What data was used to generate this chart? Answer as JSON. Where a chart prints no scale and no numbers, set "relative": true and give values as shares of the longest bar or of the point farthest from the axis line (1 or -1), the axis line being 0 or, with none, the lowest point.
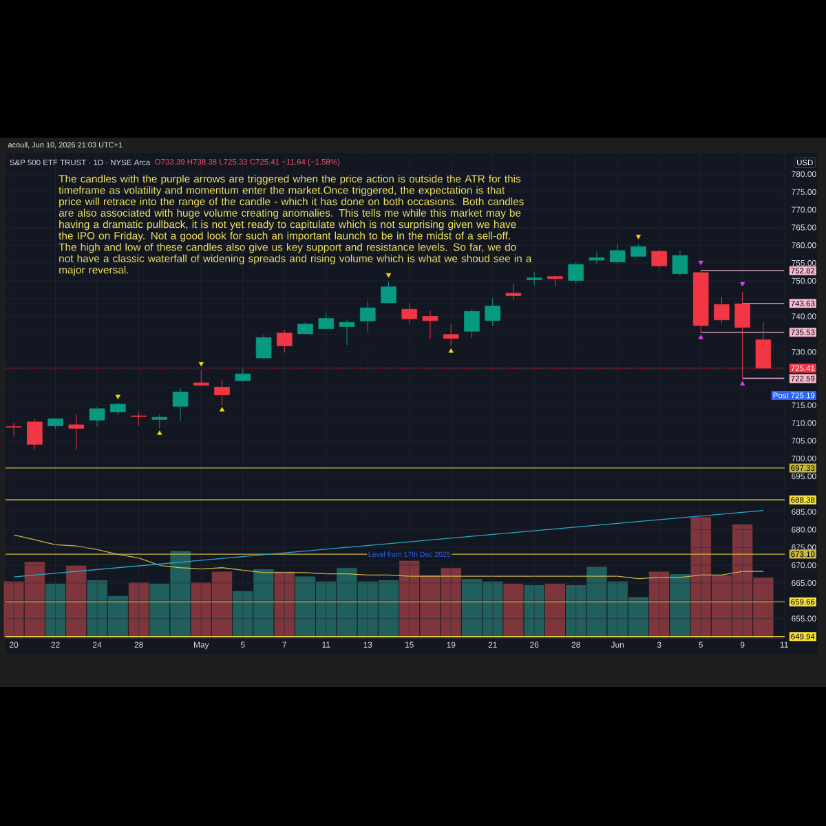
{
  "chart_data": [
    {
      "type": "candlestick",
      "title": "S&P 500 ETF TRUST · 1D · NYSE Arca",
      "subtitle": "O733.39 H738.38 L725.33 C725.41 −11.64 (−1.58%)",
      "categories": [
        "20",
        null,
        "22",
        null,
        "24",
        null,
        "28",
        null,
        null,
        "May",
        null,
        "5",
        null,
        "7",
        null,
        "11",
        null,
        "13",
        null,
        "15",
        null,
        "19",
        null,
        "21",
        null,
        "26",
        null,
        "28",
        null,
        "Jun",
        null,
        "3",
        null,
        "5",
        null,
        "9",
        null,
        "11"
      ],
      "ohlc": [
        [
          709.0,
          710.0,
          706.2,
          708.8
        ],
        [
          710.3,
          711.2,
          702.6,
          704.0
        ],
        [
          709.2,
          711.3,
          708.4,
          711.2
        ],
        [
          709.5,
          712.5,
          702.4,
          708.5
        ],
        [
          710.8,
          714.6,
          709.1,
          714.0
        ],
        [
          713.1,
          715.8,
          712.3,
          715.3
        ],
        [
          712.0,
          713.0,
          709.3,
          711.8
        ],
        [
          711.0,
          712.4,
          708.5,
          711.6
        ],
        [
          714.7,
          719.8,
          710.6,
          718.7
        ],
        [
          721.3,
          724.9,
          720.5,
          720.6
        ],
        [
          720.1,
          722.2,
          715.1,
          717.9
        ],
        [
          721.9,
          725.1,
          721.5,
          723.8
        ],
        [
          728.3,
          734.7,
          727.9,
          734.0
        ],
        [
          735.3,
          736.2,
          729.9,
          731.7
        ],
        [
          735.1,
          738.3,
          734.8,
          737.8
        ],
        [
          736.5,
          741.0,
          736.4,
          739.4
        ],
        [
          737.1,
          739.0,
          732.0,
          738.3
        ],
        [
          738.7,
          744.2,
          735.6,
          742.4
        ],
        [
          743.8,
          749.8,
          743.7,
          748.3
        ],
        [
          742.0,
          743.8,
          738.1,
          739.3
        ],
        [
          740.0,
          741.6,
          733.6,
          738.8
        ],
        [
          734.9,
          737.8,
          731.8,
          733.8
        ],
        [
          735.8,
          742.0,
          734.0,
          741.4
        ],
        [
          738.8,
          745.1,
          737.2,
          742.9
        ],
        [
          746.5,
          749.2,
          744.7,
          745.8
        ],
        [
          750.3,
          752.4,
          748.7,
          750.8
        ],
        [
          751.2,
          751.6,
          748.4,
          750.6
        ],
        [
          750.1,
          755.2,
          749.2,
          754.6
        ],
        [
          755.8,
          758.2,
          754.8,
          756.5
        ],
        [
          755.3,
          760.3,
          754.8,
          758.5
        ],
        [
          756.9,
          760.4,
          756.7,
          759.6
        ],
        [
          758.3,
          758.8,
          753.5,
          754.2
        ],
        [
          752.0,
          758.4,
          751.5,
          757.1
        ],
        [
          752.3,
          752.82,
          735.53,
          737.4
        ],
        [
          743.3,
          745.4,
          738.1,
          739.0
        ],
        [
          743.5,
          746.8,
          722.59,
          736.9
        ],
        [
          733.39,
          738.38,
          725.33,
          725.41
        ],
        null
      ],
      "colors": [
        "#f23645",
        "#f23645",
        "#089981",
        "#f23645",
        "#089981",
        "#089981",
        "#f23645",
        "#089981",
        "#089981",
        "#f23645",
        "#f23645",
        "#089981",
        "#089981",
        "#f23645",
        "#089981",
        "#089981",
        "#089981",
        "#089981",
        "#089981",
        "#f23645",
        "#f23645",
        "#f23645",
        "#089981",
        "#089981",
        "#f23645",
        "#089981",
        "#f23645",
        "#089981",
        "#089981",
        "#089981",
        "#089981",
        "#f23645",
        "#089981",
        "#f23645",
        "#f23645",
        "#f23645",
        "#f23645",
        null
      ],
      "series": [
        {
          "type": "line",
          "color": "#26a9c9",
          "values": [
            666.7,
            null,
            null,
            null,
            null,
            null,
            null,
            null,
            null,
            null,
            null,
            null,
            null,
            null,
            null,
            null,
            null,
            null,
            null,
            null,
            null,
            null,
            null,
            null,
            null,
            null,
            null,
            null,
            null,
            null,
            null,
            null,
            null,
            null,
            null,
            null,
            685.4,
            null
          ]
        },
        {
          "type": "line",
          "color": "#f8bbd0",
          "values": [
            null,
            null,
            null,
            null,
            null,
            null,
            null,
            null,
            null,
            null,
            null,
            null,
            null,
            null,
            null,
            null,
            null,
            null,
            null,
            null,
            null,
            null,
            null,
            null,
            null,
            null,
            null,
            null,
            null,
            null,
            null,
            null,
            null,
            752.82,
            752.82,
            752.82,
            752.82,
            752.82
          ],
          "value_labels": [
            null,
            null,
            null,
            null,
            null,
            null,
            null,
            null,
            null,
            null,
            null,
            null,
            null,
            null,
            null,
            null,
            null,
            null,
            null,
            null,
            null,
            null,
            null,
            null,
            null,
            null,
            null,
            null,
            null,
            null,
            null,
            null,
            null,
            null,
            null,
            null,
            null,
            "752.82"
          ]
        },
        {
          "type": "line",
          "color": "#f8bbd0",
          "values": [
            null,
            null,
            null,
            null,
            null,
            null,
            null,
            null,
            null,
            null,
            null,
            null,
            null,
            null,
            null,
            null,
            null,
            null,
            null,
            null,
            null,
            null,
            null,
            null,
            null,
            null,
            null,
            null,
            null,
            null,
            null,
            null,
            null,
            null,
            null,
            743.63,
            743.63,
            743.63
          ],
          "value_labels": [
            null,
            null,
            null,
            null,
            null,
            null,
            null,
            null,
            null,
            null,
            null,
            null,
            null,
            null,
            null,
            null,
            null,
            null,
            null,
            null,
            null,
            null,
            null,
            null,
            null,
            null,
            null,
            null,
            null,
            null,
            null,
            null,
            null,
            null,
            null,
            null,
            null,
            "743.63"
          ]
        },
        {
          "type": "line",
          "color": "#f8bbd0",
          "values": [
            null,
            null,
            null,
            null,
            null,
            null,
            null,
            null,
            null,
            null,
            null,
            null,
            null,
            null,
            null,
            null,
            null,
            null,
            null,
            null,
            null,
            null,
            null,
            null,
            null,
            null,
            null,
            null,
            null,
            null,
            null,
            null,
            null,
            735.53,
            735.53,
            735.53,
            735.53,
            735.53
          ],
          "value_labels": [
            null,
            null,
            null,
            null,
            null,
            null,
            null,
            null,
            null,
            null,
            null,
            null,
            null,
            null,
            null,
            null,
            null,
            null,
            null,
            null,
            null,
            null,
            null,
            null,
            null,
            null,
            null,
            null,
            null,
            null,
            null,
            null,
            null,
            null,
            null,
            null,
            null,
            "735.53"
          ]
        },
        {
          "type": "line",
          "color": "#f8bbd0",
          "values": [
            null,
            null,
            null,
            null,
            null,
            null,
            null,
            null,
            null,
            null,
            null,
            null,
            null,
            null,
            null,
            null,
            null,
            null,
            null,
            null,
            null,
            null,
            null,
            null,
            null,
            null,
            null,
            null,
            null,
            null,
            null,
            null,
            null,
            null,
            null,
            722.59,
            722.59,
            722.59
          ],
          "value_labels": [
            null,
            null,
            null,
            null,
            null,
            null,
            null,
            null,
            null,
            null,
            null,
            null,
            null,
            null,
            null,
            null,
            null,
            null,
            null,
            null,
            null,
            null,
            null,
            null,
            null,
            null,
            null,
            null,
            null,
            null,
            null,
            null,
            null,
            null,
            null,
            null,
            null,
            "722.59"
          ]
        },
        {
          "type": "scatter",
          "marker": "triangle",
          "color": "#f5d90a",
          "values": [
            null,
            null,
            null,
            null,
            null,
            717.5,
            null,
            707.1,
            null,
            726.7,
            713.7,
            null,
            null,
            null,
            null,
            null,
            null,
            null,
            751.7,
            null,
            null,
            730.2,
            null,
            null,
            null,
            null,
            null,
            null,
            null,
            null,
            762.5,
            null,
            null,
            null,
            null,
            null,
            null,
            null
          ]
        },
        {
          "type": "scatter",
          "marker": "triangle",
          "color": "#e040fb",
          "values": [
            null,
            null,
            null,
            null,
            null,
            null,
            null,
            null,
            null,
            null,
            null,
            null,
            null,
            null,
            null,
            null,
            null,
            null,
            null,
            null,
            null,
            null,
            null,
            null,
            null,
            null,
            null,
            null,
            null,
            null,
            null,
            null,
            null,
            755.2,
            null,
            749.2,
            null,
            null
          ]
        },
        {
          "type": "scatter",
          "marker": "triangle",
          "color": "#e040fb",
          "values": [
            null,
            null,
            null,
            null,
            null,
            null,
            null,
            null,
            null,
            null,
            null,
            null,
            null,
            null,
            null,
            null,
            null,
            null,
            null,
            null,
            null,
            null,
            null,
            null,
            null,
            null,
            null,
            null,
            null,
            null,
            null,
            null,
            null,
            734.0,
            null,
            721.0,
            null,
            null
          ]
        }
      ],
      "ylim": [
        649.5,
        786
      ],
      "yticks": [
        {
          "value": 650,
          "label": null
        },
        {
          "value": 655,
          "label": "655.00"
        },
        {
          "value": 660,
          "label": null
        },
        {
          "value": 665,
          "label": "665.00"
        },
        {
          "value": 670,
          "label": "670.00"
        },
        {
          "value": 675,
          "label": "675.00"
        },
        {
          "value": 680,
          "label": "680.00"
        },
        {
          "value": 685,
          "label": "685.00"
        },
        {
          "value": 690,
          "label": null
        },
        {
          "value": 695,
          "label": "695.00"
        },
        {
          "value": 700,
          "label": "700.00"
        },
        {
          "value": 705,
          "label": "705.00"
        },
        {
          "value": 710,
          "label": "710.00"
        },
        {
          "value": 715,
          "label": "715.00"
        },
        {
          "value": 720,
          "label": null
        },
        {
          "value": 725,
          "label": null
        },
        {
          "value": 730,
          "label": "730.00"
        },
        {
          "value": 735,
          "label": null
        },
        {
          "value": 740,
          "label": "740.00"
        },
        {
          "value": 745,
          "label": null
        },
        {
          "value": 750,
          "label": "750.00"
        },
        {
          "value": 755,
          "label": "755.00"
        },
        {
          "value": 760,
          "label": "760.00"
        },
        {
          "value": 765,
          "label": "765.00"
        },
        {
          "value": 770,
          "label": "770.00"
        },
        {
          "value": 775,
          "label": "775.00"
        },
        {
          "value": 780,
          "label": "780.00"
        }
      ],
      "grid": true,
      "ref_lines": [
        {
          "axis": "y",
          "value": 697.33,
          "label": "697.33",
          "color": "#c9b840"
        },
        {
          "axis": "y",
          "value": 688.38,
          "label": "688.38",
          "color": "#f5df3c"
        },
        {
          "axis": "y",
          "value": 673.1,
          "label": "673.10",
          "color": "#c9b840"
        },
        {
          "axis": "y",
          "value": 659.66,
          "label": "659.66",
          "color": "#f5df3c"
        },
        {
          "axis": "y",
          "value": 649.94,
          "label": "649.94",
          "color": "#f5df3c"
        },
        {
          "axis": "y",
          "value": 725.41,
          "label": "725.41",
          "color": "#f23645",
          "line_style": "dotted"
        }
      ],
      "annotations": [
        "acoull, Jun 10, 2026 21:03 UTC+1",
        "The candles with the purple arrows are triggered when the price action is outside the ATR for this timeframe as volatility and momentum enter the market.Once triggered, the expectation is that price will retrace into the range of the candle - which it has done on both occasions. Both candles are also associated with huge volume creating anomalies. This tells me while this market may be having a dramatic pullback, it is not yet ready to capitulate which is not surprising given we have the IPO on Friday. Not a good look for such an important launch to be in the midst of a sell-off. The high and low of these candles also give us key support and resistance levels. So far, we do not have a classic waterfall of widening spreads and rising volume which is what we shoud see in a major reversal.",
        "USD",
        {
          "text": "Level from 17th Dec 2025",
          "x": "15",
          "y": 673.1
        },
        "Post 725.19"
      ]
    },
    {
      "type": "bar",
      "relative": true,
      "categories": [
        null,
        null,
        null,
        null,
        null,
        null,
        null,
        null,
        null,
        null,
        null,
        null,
        null,
        null,
        null,
        null,
        null,
        null,
        null,
        null,
        null,
        null,
        null,
        null,
        null,
        null,
        null,
        null,
        null,
        null,
        null,
        null,
        null,
        null,
        null,
        null,
        null,
        null
      ],
      "series": [
        {
          "type": "bar",
          "colors": [
            "#7e363c",
            "#7e363c",
            "#215f5c",
            "#7e363c",
            "#215f5c",
            "#215f5c",
            "#7e363c",
            "#215f5c",
            "#215f5c",
            "#7e363c",
            "#7e363c",
            "#215f5c",
            "#215f5c",
            "#7e363c",
            "#215f5c",
            "#215f5c",
            "#215f5c",
            "#215f5c",
            "#215f5c",
            "#7e363c",
            "#7e363c",
            "#7e363c",
            "#215f5c",
            "#215f5c",
            "#7e363c",
            "#215f5c",
            "#7e363c",
            "#215f5c",
            "#215f5c",
            "#215f5c",
            "#215f5c",
            "#7e363c",
            "#215f5c",
            "#7e363c",
            "#7e363c",
            "#7e363c",
            "#7e363c",
            null
          ],
          "values": [
            0.47,
            0.63,
            0.45,
            0.6,
            0.48,
            0.35,
            0.46,
            0.45,
            0.72,
            0.46,
            0.55,
            0.39,
            0.57,
            0.55,
            0.51,
            0.47,
            0.58,
            0.47,
            0.48,
            0.64,
            0.52,
            0.58,
            0.49,
            0.47,
            0.45,
            0.44,
            0.45,
            0.44,
            0.59,
            0.47,
            0.34,
            0.55,
            0.53,
            1,
            0.52,
            0.94,
            0.5,
            null
          ]
        },
        {
          "type": "line",
          "color": "#c9b54a",
          "values": [
            0.85,
            0.81,
            0.77,
            0.76,
            0.73,
            0.69,
            0.66,
            0.6,
            0.58,
            0.57,
            0.58,
            0.56,
            0.54,
            0.54,
            0.54,
            0.53,
            0.53,
            0.52,
            0.52,
            0.51,
            0.51,
            0.51,
            0.51,
            0.51,
            0.51,
            0.51,
            0.51,
            0.51,
            0.51,
            0.51,
            0.49,
            0.5,
            0.5,
            0.52,
            0.52,
            0.55,
            0.55,
            null
          ]
        }
      ]
    }
  ]
}
